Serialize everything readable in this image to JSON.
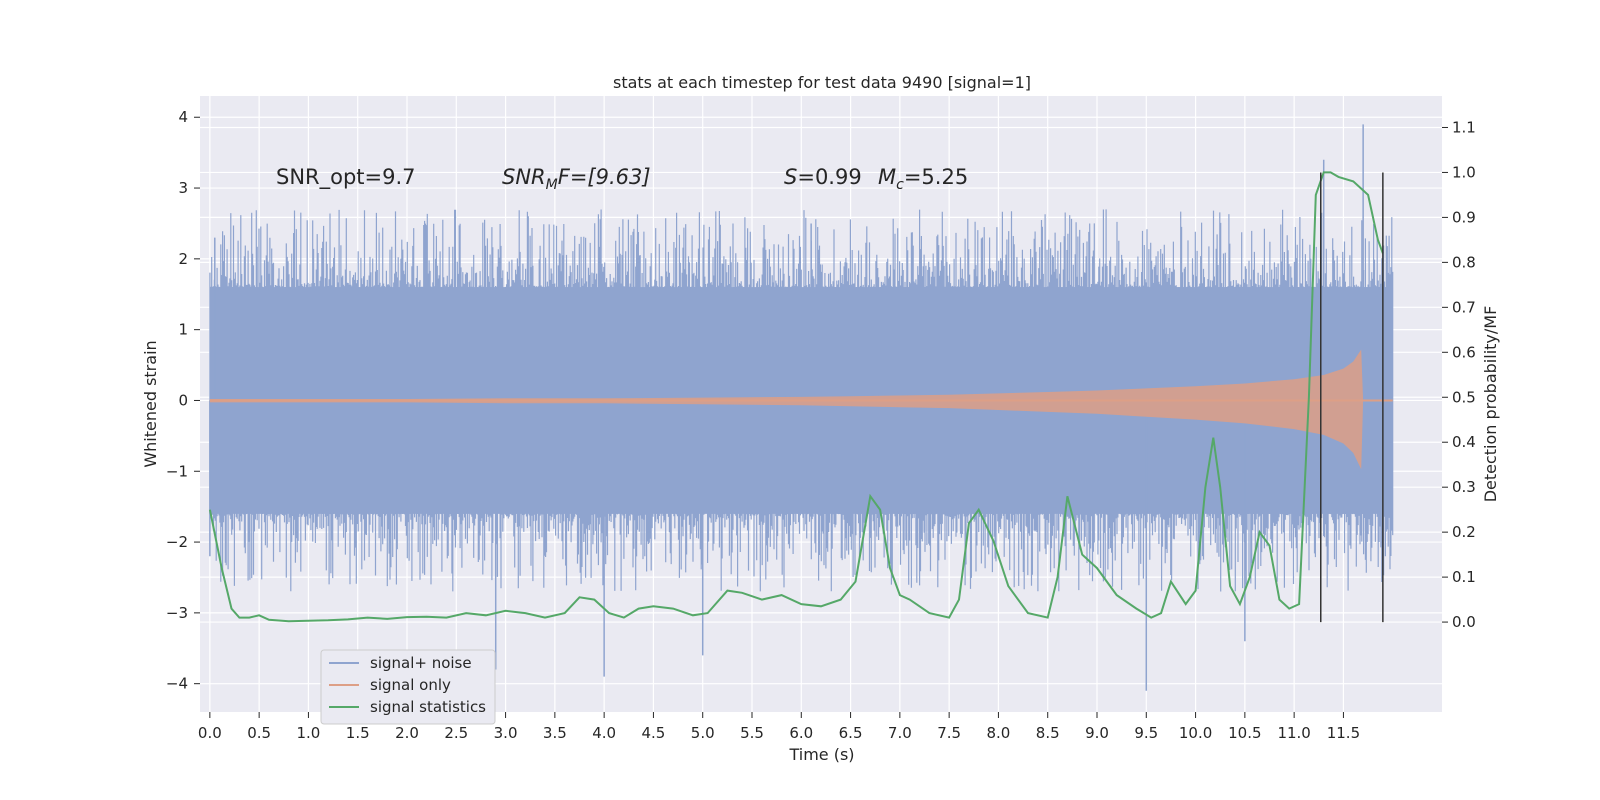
{
  "chart_data": {
    "type": "line",
    "title": "stats at each timestep for test data 9490 [signal=1]",
    "xlabel": "Time (s)",
    "ylabel": "Whitened strain",
    "y2label": "Detection probability/MF",
    "xlim": [
      -0.1,
      12.5
    ],
    "ylim": [
      -4.4,
      4.3
    ],
    "y2lim": [
      -0.2,
      1.17
    ],
    "x_ticks": [
      "0.0",
      "0.5",
      "1.0",
      "1.5",
      "2.0",
      "2.5",
      "3.0",
      "3.5",
      "4.0",
      "4.5",
      "5.0",
      "5.5",
      "6.0",
      "6.5",
      "7.0",
      "7.5",
      "8.0",
      "8.5",
      "9.0",
      "9.5",
      "10.0",
      "10.5",
      "11.0",
      "11.5"
    ],
    "y_ticks": [
      "4",
      "3",
      "2",
      "1",
      "0",
      "−1",
      "−2",
      "−3",
      "−4"
    ],
    "y2_ticks": [
      "1.1",
      "1.0",
      "0.9",
      "0.8",
      "0.7",
      "0.6",
      "0.5",
      "0.4",
      "0.3",
      "0.2",
      "0.1",
      "0.0"
    ],
    "grid": true,
    "legend_position": "lower-left",
    "annotations": {
      "snr_opt": "SNR_opt=9.7",
      "snr_mf_main": "SNR",
      "snr_mf_sub": "M",
      "snr_mf_rest": "F=[9.63]",
      "s_main": "S",
      "s_rest": "=0.99",
      "mc_main": "M",
      "mc_sub": "c",
      "mc_rest": "=5.25"
    },
    "series": [
      {
        "name": "signal+ noise",
        "color": "#8fa4cf",
        "axis": "left",
        "x_range": [
          0.0,
          12.0
        ],
        "envelope_typical": [
          -1.6,
          1.6
        ],
        "peaks_max": [
          [
            0.05,
            2.3
          ],
          [
            6.1,
            2.5
          ],
          [
            11.3,
            3.4
          ],
          [
            11.7,
            3.9
          ]
        ],
        "peaks_min": [
          [
            0.0,
            -2.2
          ],
          [
            2.9,
            -3.8
          ],
          [
            4.0,
            -3.9
          ],
          [
            5.0,
            -3.6
          ],
          [
            9.5,
            -4.1
          ],
          [
            10.5,
            -3.4
          ]
        ]
      },
      {
        "name": "signal only",
        "color": "#dd9f86",
        "axis": "left",
        "x": [
          0.0,
          1.0,
          2.0,
          3.0,
          4.0,
          5.0,
          6.0,
          6.5,
          7.0,
          7.5,
          8.0,
          8.5,
          9.0,
          9.5,
          10.0,
          10.5,
          11.0,
          11.3,
          11.5,
          11.6,
          11.68,
          11.7,
          12.0
        ],
        "envelope": [
          0.02,
          0.02,
          0.02,
          0.03,
          0.03,
          0.04,
          0.05,
          0.06,
          0.07,
          0.08,
          0.1,
          0.12,
          0.14,
          0.17,
          0.2,
          0.24,
          0.3,
          0.36,
          0.45,
          0.55,
          0.72,
          0.0,
          0.0
        ]
      },
      {
        "name": "signal statistics",
        "color": "#55a868",
        "axis": "right",
        "x": [
          0.0,
          0.12,
          0.22,
          0.3,
          0.4,
          0.5,
          0.6,
          0.8,
          1.0,
          1.2,
          1.4,
          1.6,
          1.8,
          2.0,
          2.2,
          2.4,
          2.6,
          2.8,
          3.0,
          3.2,
          3.4,
          3.6,
          3.75,
          3.9,
          4.05,
          4.2,
          4.35,
          4.5,
          4.7,
          4.9,
          5.05,
          5.25,
          5.4,
          5.6,
          5.8,
          6.0,
          6.2,
          6.4,
          6.55,
          6.7,
          6.8,
          6.9,
          7.0,
          7.1,
          7.3,
          7.5,
          7.6,
          7.7,
          7.8,
          7.95,
          8.1,
          8.3,
          8.5,
          8.6,
          8.7,
          8.85,
          9.0,
          9.2,
          9.4,
          9.55,
          9.65,
          9.75,
          9.9,
          10.0,
          10.1,
          10.18,
          10.25,
          10.35,
          10.45,
          10.55,
          10.65,
          10.75,
          10.85,
          10.95,
          11.05,
          11.15,
          11.22,
          11.3,
          11.37,
          11.45,
          11.6,
          11.75,
          11.85,
          11.9
        ],
        "values": [
          0.25,
          0.12,
          0.03,
          0.01,
          0.01,
          0.015,
          0.005,
          0.002,
          0.003,
          0.004,
          0.006,
          0.01,
          0.007,
          0.011,
          0.012,
          0.01,
          0.02,
          0.015,
          0.025,
          0.02,
          0.01,
          0.02,
          0.055,
          0.05,
          0.02,
          0.01,
          0.03,
          0.035,
          0.03,
          0.015,
          0.02,
          0.07,
          0.065,
          0.05,
          0.06,
          0.04,
          0.035,
          0.05,
          0.09,
          0.28,
          0.25,
          0.12,
          0.06,
          0.05,
          0.02,
          0.01,
          0.05,
          0.22,
          0.25,
          0.18,
          0.08,
          0.02,
          0.01,
          0.1,
          0.28,
          0.15,
          0.12,
          0.06,
          0.03,
          0.01,
          0.02,
          0.09,
          0.04,
          0.07,
          0.3,
          0.41,
          0.3,
          0.08,
          0.04,
          0.1,
          0.2,
          0.17,
          0.05,
          0.03,
          0.04,
          0.5,
          0.95,
          1.0,
          1.0,
          0.99,
          0.98,
          0.95,
          0.85,
          0.82
        ]
      },
      {
        "name": "",
        "color": "#333333",
        "axis": "right",
        "type": "vlines",
        "x": [
          11.27,
          11.9
        ],
        "y_range": [
          0.0,
          1.0
        ]
      }
    ]
  }
}
